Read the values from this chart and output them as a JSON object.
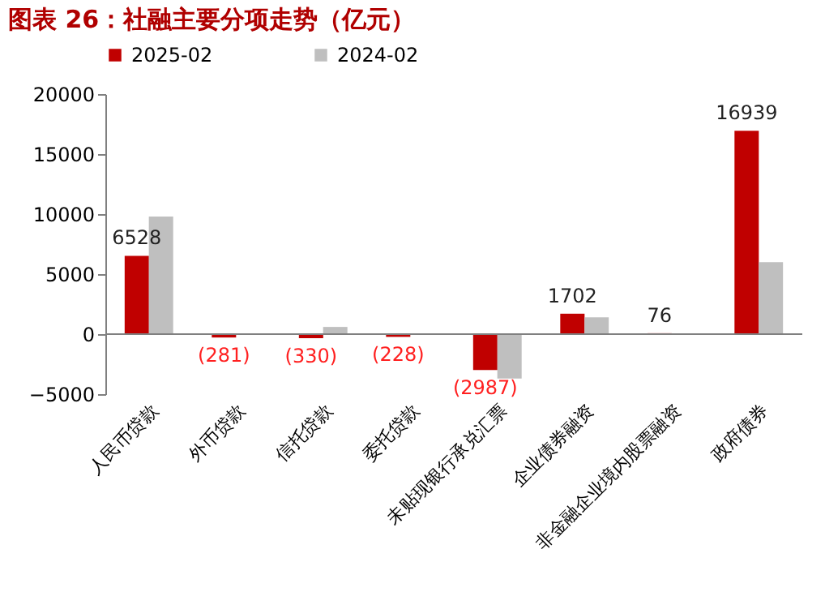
{
  "chart_data": {
    "type": "bar",
    "title": "图表 26：社融主要分项走势（亿元）",
    "categories": [
      "人民币贷款",
      "外币贷款",
      "信托贷款",
      "委托贷款",
      "未贴现银行承兑汇票",
      "企业债券融资",
      "非金融企业境内股票融资",
      "政府债券"
    ],
    "series": [
      {
        "name": "2025-02",
        "color": "#c00000",
        "values": [
          6528,
          -281,
          -330,
          -228,
          -2987,
          1702,
          76,
          16939
        ],
        "value_labels": [
          "6528",
          "(281)",
          "(330)",
          "(228)",
          "(2987)",
          "1702",
          "76",
          "16939"
        ]
      },
      {
        "name": "2024-02",
        "color": "#bfbfbf",
        "values": [
          9800,
          null,
          600,
          null,
          -3700,
          1400,
          null,
          6000
        ]
      }
    ],
    "ylim": [
      -5000,
      20000
    ],
    "yticks": [
      -5000,
      0,
      5000,
      10000,
      15000,
      20000
    ],
    "ref_lines": [
      {
        "axis": "y",
        "value": 0,
        "color": "#808080"
      }
    ],
    "grid": false,
    "legend": "top"
  }
}
